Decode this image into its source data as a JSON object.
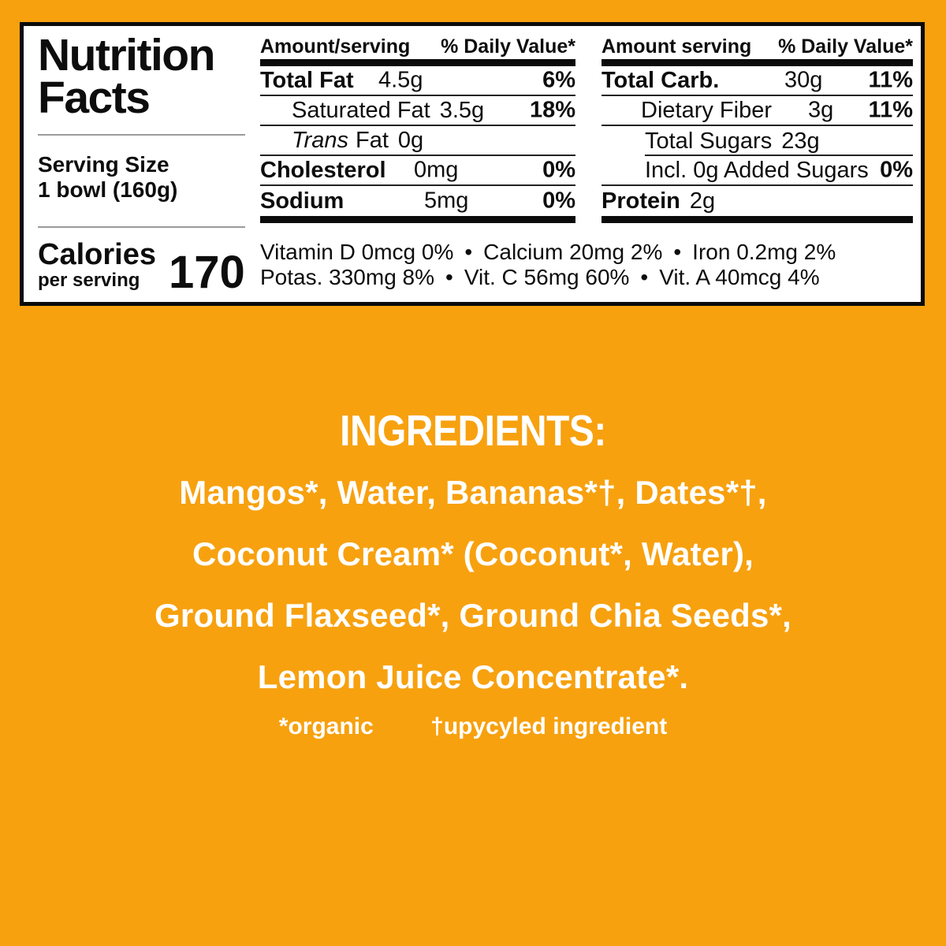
{
  "colors": {
    "background_orange": "#F7A10F",
    "panel_background": "#FFFFFF",
    "text_black": "#0d0d0d",
    "text_white": "#FFFFFF"
  },
  "panel": {
    "title_line1": "Nutrition",
    "title_line2": "Facts",
    "serving_label": "Serving Size",
    "serving_value": "1 bowl (160g)",
    "calories_label": "Calories",
    "calories_sub": "per serving",
    "calories_value": "170",
    "col1": {
      "header_amount": "Amount/serving",
      "header_dv": "% Daily Value*",
      "rows": [
        {
          "name": "Total Fat",
          "amount": "4.5g",
          "dv": "6%"
        },
        {
          "name": "Saturated Fat",
          "amount": "3.5g",
          "dv": "18%"
        },
        {
          "name_italic": "Trans",
          "name": "Fat",
          "amount": "0g"
        },
        {
          "name": "Cholesterol",
          "amount": "0mg",
          "dv": "0%"
        },
        {
          "name": "Sodium",
          "amount": "5mg",
          "dv": "0%"
        }
      ]
    },
    "col2": {
      "header_amount": "Amount serving",
      "header_dv": "% Daily Value*",
      "rows": [
        {
          "name": "Total Carb.",
          "amount": "30g",
          "dv": "11%"
        },
        {
          "name": "Dietary Fiber",
          "amount": "3g",
          "dv": "11%"
        },
        {
          "name": "Total Sugars",
          "amount": "23g"
        },
        {
          "name": "Incl. 0g Added Sugars",
          "dv": "0%"
        },
        {
          "name": "Protein",
          "amount": "2g"
        }
      ]
    },
    "vitamins_line1": "Vitamin D 0mcg 0% • Calcium 20mg 2% • Iron 0.2mg 2%",
    "vitamins_line2": "Potas. 330mg 8% • Vit. C 56mg 60% • Vit. A 40mcg 4%"
  },
  "ingredients": {
    "heading": "INGREDIENTS:",
    "lines": [
      "Mangos*, Water, Bananas*†, Dates*†,",
      "Coconut Cream* (Coconut*, Water),",
      "Ground Flaxseed*, Ground Chia Seeds*,",
      "Lemon Juice Concentrate*."
    ],
    "footnote_organic": "*organic",
    "footnote_upcycled": "†upycyled ingredient"
  }
}
